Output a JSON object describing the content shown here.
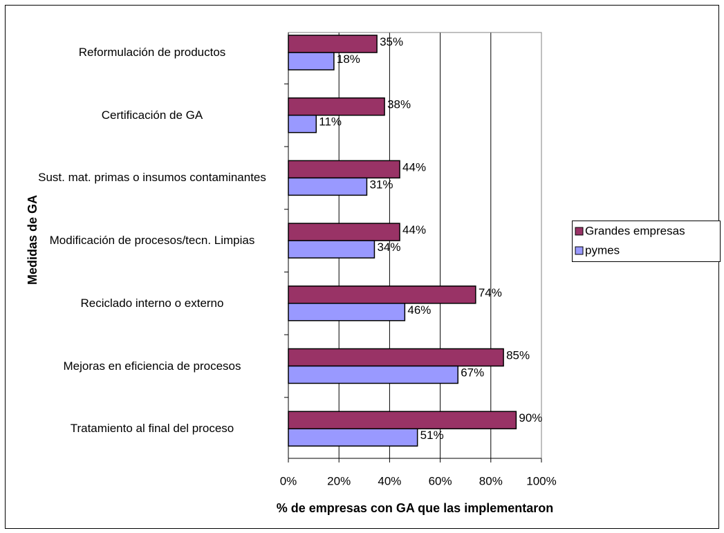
{
  "chart_data": {
    "type": "hbar",
    "xlabel": "% de empresas con GA que las implementaron",
    "ylabel": "Medidas de GA",
    "categories": [
      "Reformulación de productos",
      "Certificación de GA",
      "Sust. mat. primas o insumos contaminantes",
      "Modificación de procesos/tecn. Limpias",
      "Reciclado interno o externo",
      "Mejoras en eficiencia de procesos",
      "Tratamiento al final del proceso"
    ],
    "series": [
      {
        "name": "Grandes empresas",
        "color": "#993366",
        "values": [
          35,
          38,
          44,
          44,
          74,
          85,
          90
        ],
        "value_labels": [
          "35%",
          "38%",
          "44%",
          "44%",
          "74%",
          "85%",
          "90%"
        ]
      },
      {
        "name": "pymes",
        "color": "#9999ff",
        "values": [
          18,
          11,
          31,
          34,
          46,
          67,
          51
        ],
        "value_labels": [
          "18%",
          "11%",
          "31%",
          "34%",
          "46%",
          "67%",
          "51%"
        ]
      }
    ],
    "xlim": [
      0,
      100
    ],
    "xticks": [
      {
        "value": 0,
        "label": "0%"
      },
      {
        "value": 20,
        "label": "20%"
      },
      {
        "value": 40,
        "label": "40%"
      },
      {
        "value": 60,
        "label": "60%"
      },
      {
        "value": 80,
        "label": "80%"
      },
      {
        "value": 100,
        "label": "100%"
      }
    ],
    "grid": true,
    "legend": "right"
  }
}
